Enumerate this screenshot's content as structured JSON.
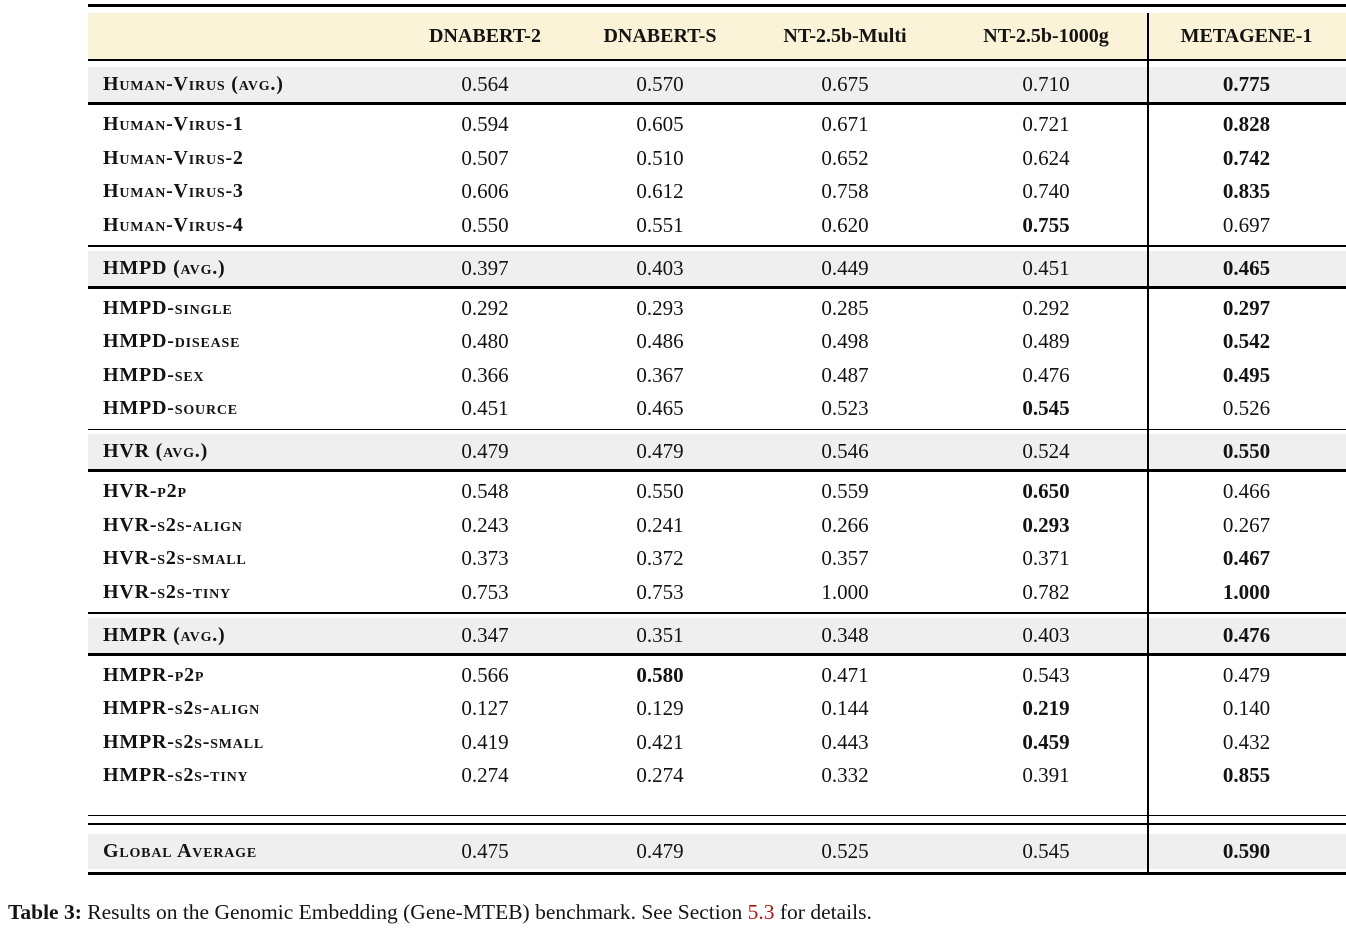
{
  "header": {
    "columns": [
      "DNABERT-2",
      "DNABERT-S",
      "NT-2.5b-Multi",
      "NT-2.5b-1000g",
      "METAGENE-1"
    ]
  },
  "sections": [
    {
      "avg": {
        "label": "Human-Virus (avg.)",
        "values": [
          "0.564",
          "0.570",
          "0.675",
          "0.710",
          "0.775"
        ],
        "bold": 4
      },
      "rows": [
        {
          "label": "Human-Virus-1",
          "values": [
            "0.594",
            "0.605",
            "0.671",
            "0.721",
            "0.828"
          ],
          "bold": 4
        },
        {
          "label": "Human-Virus-2",
          "values": [
            "0.507",
            "0.510",
            "0.652",
            "0.624",
            "0.742"
          ],
          "bold": 4
        },
        {
          "label": "Human-Virus-3",
          "values": [
            "0.606",
            "0.612",
            "0.758",
            "0.740",
            "0.835"
          ],
          "bold": 4
        },
        {
          "label": "Human-Virus-4",
          "values": [
            "0.550",
            "0.551",
            "0.620",
            "0.755",
            "0.697"
          ],
          "bold": 3
        }
      ]
    },
    {
      "avg": {
        "label": "HMPD (avg.)",
        "values": [
          "0.397",
          "0.403",
          "0.449",
          "0.451",
          "0.465"
        ],
        "bold": 4
      },
      "rows": [
        {
          "label": "HMPD-single",
          "values": [
            "0.292",
            "0.293",
            "0.285",
            "0.292",
            "0.297"
          ],
          "bold": 4
        },
        {
          "label": "HMPD-disease",
          "values": [
            "0.480",
            "0.486",
            "0.498",
            "0.489",
            "0.542"
          ],
          "bold": 4
        },
        {
          "label": "HMPD-sex",
          "values": [
            "0.366",
            "0.367",
            "0.487",
            "0.476",
            "0.495"
          ],
          "bold": 4
        },
        {
          "label": "HMPD-source",
          "values": [
            "0.451",
            "0.465",
            "0.523",
            "0.545",
            "0.526"
          ],
          "bold": 3
        }
      ]
    },
    {
      "avg": {
        "label": "HVR (avg.)",
        "values": [
          "0.479",
          "0.479",
          "0.546",
          "0.524",
          "0.550"
        ],
        "bold": 4
      },
      "rows": [
        {
          "label": "HVR-p2p",
          "values": [
            "0.548",
            "0.550",
            "0.559",
            "0.650",
            "0.466"
          ],
          "bold": 3
        },
        {
          "label": "HVR-s2s-align",
          "values": [
            "0.243",
            "0.241",
            "0.266",
            "0.293",
            "0.267"
          ],
          "bold": 3
        },
        {
          "label": "HVR-s2s-small",
          "values": [
            "0.373",
            "0.372",
            "0.357",
            "0.371",
            "0.467"
          ],
          "bold": 4
        },
        {
          "label": "HVR-s2s-tiny",
          "values": [
            "0.753",
            "0.753",
            "1.000",
            "0.782",
            "1.000"
          ],
          "bold": 4
        }
      ]
    },
    {
      "avg": {
        "label": "HMPR (avg.)",
        "values": [
          "0.347",
          "0.351",
          "0.348",
          "0.403",
          "0.476"
        ],
        "bold": 4
      },
      "rows": [
        {
          "label": "HMPR-p2p",
          "values": [
            "0.566",
            "0.580",
            "0.471",
            "0.543",
            "0.479"
          ],
          "bold": 1
        },
        {
          "label": "HMPR-s2s-align",
          "values": [
            "0.127",
            "0.129",
            "0.144",
            "0.219",
            "0.140"
          ],
          "bold": 3
        },
        {
          "label": "HMPR-s2s-small",
          "values": [
            "0.419",
            "0.421",
            "0.443",
            "0.459",
            "0.432"
          ],
          "bold": 3
        },
        {
          "label": "HMPR-s2s-tiny",
          "values": [
            "0.274",
            "0.274",
            "0.332",
            "0.391",
            "0.855"
          ],
          "bold": 4
        }
      ]
    }
  ],
  "global_row": {
    "label": "Global Average",
    "values": [
      "0.475",
      "0.479",
      "0.525",
      "0.545",
      "0.590"
    ],
    "bold": 4
  },
  "caption": {
    "prefix": "Table 3:",
    "text_before_link": " Results on the Genomic Embedding (Gene-MTEB) benchmark. See Section ",
    "link": "5.3",
    "text_after_link": " for details."
  },
  "colors": {
    "header_bg": "#fbf3d8",
    "band_bg": "#efefef",
    "rule": "#000000",
    "link_red": "#b01412"
  },
  "chart_data": {
    "type": "table",
    "title": "Results on the Genomic Embedding (Gene-MTEB) benchmark",
    "columns": [
      "",
      "DNABERT-2",
      "DNABERT-S",
      "NT-2.5b-Multi",
      "NT-2.5b-1000g",
      "METAGENE-1"
    ],
    "rows": [
      [
        "Human-Virus (avg.)",
        0.564,
        0.57,
        0.675,
        0.71,
        0.775
      ],
      [
        "Human-Virus-1",
        0.594,
        0.605,
        0.671,
        0.721,
        0.828
      ],
      [
        "Human-Virus-2",
        0.507,
        0.51,
        0.652,
        0.624,
        0.742
      ],
      [
        "Human-Virus-3",
        0.606,
        0.612,
        0.758,
        0.74,
        0.835
      ],
      [
        "Human-Virus-4",
        0.55,
        0.551,
        0.62,
        0.755,
        0.697
      ],
      [
        "HMPD (avg.)",
        0.397,
        0.403,
        0.449,
        0.451,
        0.465
      ],
      [
        "HMPD-single",
        0.292,
        0.293,
        0.285,
        0.292,
        0.297
      ],
      [
        "HMPD-disease",
        0.48,
        0.486,
        0.498,
        0.489,
        0.542
      ],
      [
        "HMPD-sex",
        0.366,
        0.367,
        0.487,
        0.476,
        0.495
      ],
      [
        "HMPD-source",
        0.451,
        0.465,
        0.523,
        0.545,
        0.526
      ],
      [
        "HVR (avg.)",
        0.479,
        0.479,
        0.546,
        0.524,
        0.55
      ],
      [
        "HVR-p2p",
        0.548,
        0.55,
        0.559,
        0.65,
        0.466
      ],
      [
        "HVR-s2s-align",
        0.243,
        0.241,
        0.266,
        0.293,
        0.267
      ],
      [
        "HVR-s2s-small",
        0.373,
        0.372,
        0.357,
        0.371,
        0.467
      ],
      [
        "HVR-s2s-tiny",
        0.753,
        0.753,
        1.0,
        0.782,
        1.0
      ],
      [
        "HMPR (avg.)",
        0.347,
        0.351,
        0.348,
        0.403,
        0.476
      ],
      [
        "HMPR-p2p",
        0.566,
        0.58,
        0.471,
        0.543,
        0.479
      ],
      [
        "HMPR-s2s-align",
        0.127,
        0.129,
        0.144,
        0.219,
        0.14
      ],
      [
        "HMPR-s2s-small",
        0.419,
        0.421,
        0.443,
        0.459,
        0.432
      ],
      [
        "HMPR-s2s-tiny",
        0.274,
        0.274,
        0.332,
        0.391,
        0.855
      ],
      [
        "Global Average",
        0.475,
        0.479,
        0.525,
        0.545,
        0.59
      ]
    ]
  }
}
